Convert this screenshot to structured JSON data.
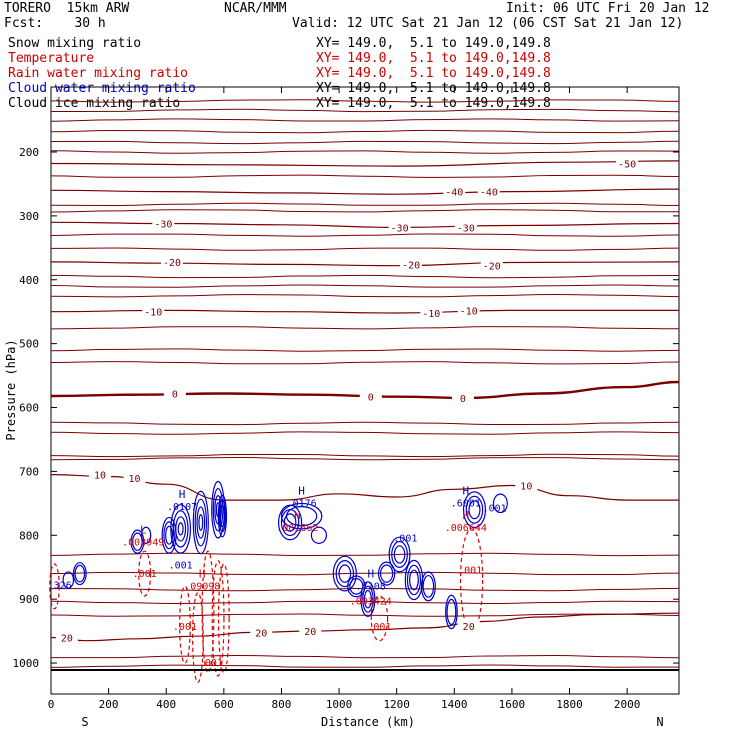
{
  "header": {
    "model": "TORERO  15km ARW",
    "org": "NCAR/MMM",
    "init": "Init: 06 UTC Fri 20 Jan 12",
    "fcst": "Fcst:    30 h",
    "valid": "Valid: 12 UTC Sat 21 Jan 12 (06 CST Sat 21 Jan 12)"
  },
  "fields": [
    {
      "name": "Snow mixing ratio",
      "xy": "",
      "color": "#000000"
    },
    {
      "name": "Temperature",
      "xy": "XY= 149.0,  5.1 to 149.0,149.8",
      "color": "#cc0000"
    },
    {
      "name": "Rain water mixing ratio",
      "xy": "XY= 149.0,  5.1 to 149.0,149.8",
      "color": "#cc0000"
    },
    {
      "name": "Cloud water mixing ratio",
      "xy": "XY= 149.0,  5.1 to 149.0,149.8",
      "color": "#0000cc"
    },
    {
      "name": "Cloud ice mixing ratio",
      "xy": "XY= 149.0,  5.1 to 149.0,149.8",
      "color": "#000000"
    }
  ],
  "xy_first": "XY= 149.0,  5.1 to 149.0,149.8",
  "colors": {
    "temperature": "#7a0000",
    "rain": "#dd0000",
    "cloud": "#0000cc",
    "axis": "#000000"
  },
  "chart_data": {
    "type": "contour-cross-section",
    "xlabel": "Distance (km)",
    "ylabel": "Pressure (hPa)",
    "x_ticks": [
      0,
      200,
      400,
      600,
      800,
      1000,
      1200,
      1400,
      1600,
      1800,
      2000
    ],
    "y_ticks": [
      200,
      300,
      400,
      500,
      600,
      700,
      800,
      900,
      1000
    ],
    "xlim": [
      0,
      2180
    ],
    "ylim_hpa": [
      1050,
      100
    ],
    "y_scale": "linear-pressure",
    "direction_labels": [
      "S",
      "N"
    ],
    "isotherms": [
      {
        "value": 20,
        "points": [
          [
            0,
            960
          ],
          [
            120,
            965
          ],
          [
            300,
            962
          ],
          [
            500,
            958
          ],
          [
            700,
            952
          ],
          [
            900,
            950
          ],
          [
            1100,
            948
          ],
          [
            1300,
            945
          ],
          [
            1500,
            935
          ],
          [
            1700,
            928
          ],
          [
            1900,
            924
          ],
          [
            2180,
            922
          ]
        ],
        "labels": [
          [
            55,
            960,
            "20"
          ],
          [
            730,
            952,
            "20"
          ],
          [
            900,
            950,
            "20"
          ],
          [
            1450,
            942,
            "20"
          ]
        ]
      },
      {
        "value": 10,
        "points": [
          [
            0,
            705
          ],
          [
            200,
            708
          ],
          [
            400,
            720
          ],
          [
            600,
            745
          ],
          [
            800,
            745
          ],
          [
            1000,
            735
          ],
          [
            1200,
            740
          ],
          [
            1400,
            728
          ],
          [
            1600,
            722
          ],
          [
            1800,
            738
          ],
          [
            2000,
            745
          ],
          [
            2180,
            745
          ]
        ],
        "labels": [
          [
            170,
            705,
            "10"
          ],
          [
            290,
            710,
            "10"
          ],
          [
            1650,
            722,
            "10"
          ]
        ]
      },
      {
        "value": 0,
        "points": [
          [
            0,
            582
          ],
          [
            300,
            580
          ],
          [
            600,
            578
          ],
          [
            900,
            580
          ],
          [
            1200,
            583
          ],
          [
            1450,
            585
          ],
          [
            1700,
            578
          ],
          [
            2000,
            568
          ],
          [
            2180,
            560
          ]
        ],
        "labels": [
          [
            430,
            578,
            "0"
          ],
          [
            1110,
            583,
            "0"
          ],
          [
            1430,
            585,
            "0"
          ]
        ]
      },
      {
        "value": -10,
        "points": [
          [
            0,
            450
          ],
          [
            400,
            448
          ],
          [
            800,
            450
          ],
          [
            1200,
            452
          ],
          [
            1600,
            448
          ],
          [
            2180,
            448
          ]
        ],
        "labels": [
          [
            355,
            450,
            "-10"
          ],
          [
            1320,
            452,
            "-10"
          ],
          [
            1450,
            448,
            "-10"
          ]
        ]
      },
      {
        "value": -20,
        "points": [
          [
            0,
            372
          ],
          [
            400,
            374
          ],
          [
            800,
            376
          ],
          [
            1200,
            378
          ],
          [
            1600,
            373
          ],
          [
            2180,
            372
          ]
        ],
        "labels": [
          [
            420,
            372,
            "-20"
          ],
          [
            1250,
            376,
            "-20"
          ],
          [
            1530,
            378,
            "-20"
          ]
        ]
      },
      {
        "value": -30,
        "points": [
          [
            0,
            310
          ],
          [
            400,
            312
          ],
          [
            800,
            314
          ],
          [
            1200,
            318
          ],
          [
            1600,
            315
          ],
          [
            2180,
            312
          ]
        ],
        "labels": [
          [
            390,
            312,
            "-30"
          ],
          [
            1210,
            318,
            "-30"
          ],
          [
            1440,
            318,
            "-30"
          ]
        ]
      },
      {
        "value": -40,
        "points": [
          [
            0,
            260
          ],
          [
            400,
            262
          ],
          [
            800,
            264
          ],
          [
            1200,
            266
          ],
          [
            1600,
            262
          ],
          [
            2180,
            258
          ]
        ],
        "labels": [
          [
            1400,
            262,
            "-40"
          ],
          [
            1520,
            262,
            "-40"
          ]
        ]
      },
      {
        "value": -50,
        "points": [
          [
            0,
            218
          ],
          [
            600,
            220
          ],
          [
            1200,
            222
          ],
          [
            1800,
            216
          ],
          [
            2180,
            214
          ]
        ],
        "labels": [
          [
            2000,
            218,
            "-50"
          ]
        ]
      }
    ],
    "extra_isotherms_hpa": [
      120,
      135,
      150,
      168,
      185,
      200,
      238,
      282,
      292,
      330,
      352,
      395,
      410,
      425,
      475,
      510,
      530,
      625,
      640,
      675,
      680,
      830,
      860,
      885,
      905,
      925,
      990,
      1005
    ],
    "contour_labels": [
      {
        "x": 450,
        "p": 852,
        "text": ".001",
        "series": "cloud"
      },
      {
        "x": 1230,
        "p": 810,
        "text": ".001",
        "series": "cloud"
      },
      {
        "x": 1540,
        "p": 763,
        "text": ".001",
        "series": "cloud"
      },
      {
        "x": 325,
        "p": 865,
        "text": ".001",
        "series": "rain"
      },
      {
        "x": 465,
        "p": 948,
        "text": ".001",
        "series": "rain"
      },
      {
        "x": 555,
        "p": 1005,
        "text": ".001",
        "series": "rain"
      },
      {
        "x": 1140,
        "p": 948,
        "text": ".001",
        "series": "rain"
      },
      {
        "x": 1455,
        "p": 860,
        "text": ".001",
        "series": "rain"
      }
    ],
    "extrema": [
      {
        "x": 455,
        "p": 757,
        "mark": "H",
        "value": ".0107",
        "series": "cloud"
      },
      {
        "x": 870,
        "p": 752,
        "mark": "H",
        "value": ".0176",
        "series": "cloud"
      },
      {
        "x": 1440,
        "p": 752,
        "mark": "H",
        "value": ".6001",
        "series": "cloud"
      },
      {
        "x": 320,
        "p": 813,
        "mark": "L",
        "value": ".003949",
        "series": "rain"
      },
      {
        "x": 855,
        "p": 790,
        "mark": "H",
        "value": ".001662",
        "series": "rain"
      },
      {
        "x": 1440,
        "p": 790,
        "mark": "H",
        "value": ".006644",
        "series": "rain"
      },
      {
        "x": 525,
        "p": 882,
        "mark": "H",
        "value": ".09098",
        "series": "rain"
      },
      {
        "x": 1110,
        "p": 882,
        "mark": "H",
        "value": ".7108",
        "series": "cloud"
      },
      {
        "x": 1110,
        "p": 905,
        "mark": "",
        "value": ".003424",
        "series": "rain"
      },
      {
        "x": 30,
        "p": 880,
        "mark": "",
        "value": ".326",
        "series": "cloud"
      }
    ]
  }
}
